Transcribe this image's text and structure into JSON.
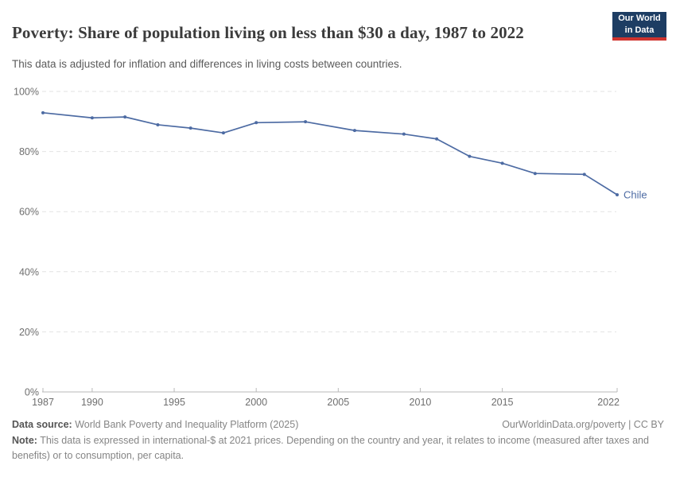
{
  "header": {
    "title": "Poverty: Share of population living on less than $30 a day, 1987 to 2022",
    "subtitle": "This data is adjusted for inflation and differences in living costs between countries.",
    "logo": {
      "line1": "Our World",
      "line2": "in Data"
    }
  },
  "chart_data": {
    "type": "line",
    "title": "Poverty: Share of population living on less than $30 a day, 1987 to 2022",
    "subtitle": "This data is adjusted for inflation and differences in living costs between countries.",
    "xlabel": "",
    "ylabel": "",
    "xlim": [
      1987,
      2022
    ],
    "ylim": [
      0,
      100
    ],
    "xticks": [
      1987,
      1990,
      1995,
      2000,
      2005,
      2010,
      2015,
      2022
    ],
    "yticks": [
      0,
      20,
      40,
      60,
      80,
      100
    ],
    "ytick_suffix": "%",
    "grid": "horizontal-dashed",
    "legend_position": "end-of-line",
    "series": [
      {
        "name": "Chile",
        "color": "#4d6ba3",
        "x": [
          1987,
          1990,
          1992,
          1994,
          1996,
          1998,
          2000,
          2003,
          2006,
          2009,
          2011,
          2013,
          2015,
          2017,
          2020,
          2022
        ],
        "values": [
          92.9,
          91.2,
          91.5,
          88.9,
          87.8,
          86.2,
          89.6,
          89.9,
          87.0,
          85.8,
          84.2,
          78.4,
          76.1,
          72.7,
          72.4,
          65.6
        ]
      }
    ]
  },
  "footer": {
    "datasource_label": "Data source:",
    "datasource_text": "World Bank Poverty and Inequality Platform (2025)",
    "link_text": "OurWorldinData.org/poverty | CC BY",
    "note_label": "Note:",
    "note_text": "This data is expressed in international-$ at 2021 prices. Depending on the country and year, it relates to income (measured after taxes and benefits) or to consumption, per capita."
  },
  "colors": {
    "line": "#4d6ba3",
    "logo_bg": "#1d3d63",
    "logo_red": "#cf332e",
    "grid": "#e2e2e2",
    "axis": "#b9b9b9",
    "tick_label": "#6e6e6e",
    "title": "#3b3b3b",
    "subtitle": "#5b5b5b"
  }
}
